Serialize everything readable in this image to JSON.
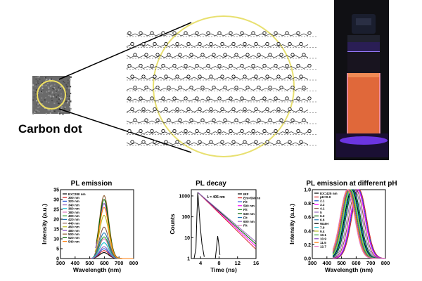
{
  "labels": {
    "carbon_dot": "Carbon dot",
    "panel1_title": "PL emission",
    "panel2_title": "PL decay",
    "panel3_title": "PL emission at different pH"
  },
  "colors": {
    "vial_glow": "#e0683a",
    "vial_background": "#101014",
    "uv_purple": "#7a3cff",
    "guide_circle": "#e8e070"
  },
  "chart_data": [
    {
      "type": "line",
      "title": "PL emission",
      "xlabel": "Wavelength (nm)",
      "ylabel": "Intensity (a.u.)",
      "xlim": [
        300,
        800
      ],
      "ylim": [
        0,
        35
      ],
      "xticks": [
        "300",
        "400",
        "500",
        "600",
        "700",
        "800"
      ],
      "yticks": [
        "0",
        "5",
        "10",
        "15",
        "20",
        "25",
        "30",
        "35"
      ],
      "legend": {
        "placement": "top-left"
      },
      "series": [
        {
          "name": "EX=280 nm",
          "color": "#000000",
          "peak_x": 598,
          "peak_y": 3
        },
        {
          "name": "300 nm",
          "color": "#d62728",
          "peak_x": 598,
          "peak_y": 4
        },
        {
          "name": "320 nm",
          "color": "#1f4fd6",
          "peak_x": 598,
          "peak_y": 5
        },
        {
          "name": "340 nm",
          "color": "#9467bd",
          "peak_x": 598,
          "peak_y": 6
        },
        {
          "name": "360 nm",
          "color": "#17becf",
          "peak_x": 598,
          "peak_y": 8
        },
        {
          "name": "380 nm",
          "color": "#e377c2",
          "peak_x": 598,
          "peak_y": 10
        },
        {
          "name": "400 nm",
          "color": "#2ca02c",
          "peak_x": 598,
          "peak_y": 11
        },
        {
          "name": "420 nm",
          "color": "#1f77b4",
          "peak_x": 598,
          "peak_y": 13
        },
        {
          "name": "440 nm",
          "color": "#8c564b",
          "peak_x": 598,
          "peak_y": 16
        },
        {
          "name": "460 nm",
          "color": "#bcbd22",
          "peak_x": 598,
          "peak_y": 22
        },
        {
          "name": "480 nm",
          "color": "#7f3fbf",
          "peak_x": 598,
          "peak_y": 28
        },
        {
          "name": "500 nm",
          "color": "#8b5a2b",
          "peak_x": 598,
          "peak_y": 32
        },
        {
          "name": "520 nm",
          "color": "#006400",
          "peak_x": 598,
          "peak_y": 30
        },
        {
          "name": "540 nm",
          "color": "#ff7f0e",
          "peak_x": 598,
          "peak_y": 26
        }
      ]
    },
    {
      "type": "line",
      "title": "PL decay",
      "xlabel": "Time (ns)",
      "ylabel": "Counts",
      "xlim": [
        2,
        16
      ],
      "ylim": [
        1,
        2000
      ],
      "yscale": "log",
      "xticks": [
        "4",
        "8",
        "12",
        "16"
      ],
      "yticks": [
        "1",
        "10",
        "100",
        "1000"
      ],
      "annotation": "λ = 405 nm",
      "legend": {
        "placement": "top-right"
      },
      "series": [
        {
          "name": "IRF",
          "color": "#000000"
        },
        {
          "name": "Em=560 nm",
          "color": "#d62728"
        },
        {
          "name": "Fit",
          "color": "#1f4fd6"
        },
        {
          "name": "590 nm",
          "color": "#ff00ff"
        },
        {
          "name": "Fit",
          "color": "#2ca02c"
        },
        {
          "name": "630 nm",
          "color": "#006400"
        },
        {
          "name": "Fit",
          "color": "#1f77b4"
        },
        {
          "name": "600 nm",
          "color": "#9467bd"
        },
        {
          "name": "Fit",
          "color": "#e377c2"
        }
      ]
    },
    {
      "type": "line",
      "title": "PL emission at different pH",
      "xlabel": "Wavelength (nm)",
      "ylabel": "Intensity (a.u.)",
      "xlim": [
        300,
        800
      ],
      "ylim": [
        0,
        1.0
      ],
      "xticks": [
        "300",
        "400",
        "500",
        "600",
        "700",
        "800"
      ],
      "yticks": [
        "0.0",
        "0.2",
        "0.4",
        "0.6",
        "0.8",
        "1.0"
      ],
      "legend": {
        "placement": "top-left"
      },
      "series": [
        {
          "name": "EX=425 nm",
          "color": "#000000",
          "peak_x": 560,
          "peak_y": 0.0
        },
        {
          "name": "pH=0.9",
          "color": "#d62728",
          "peak_x": 620,
          "peak_y": 1.0
        },
        {
          "name": "2.1",
          "color": "#1f4fd6",
          "peak_x": 615,
          "peak_y": 1.0
        },
        {
          "name": "3.2",
          "color": "#ff00ff",
          "peak_x": 610,
          "peak_y": 1.0
        },
        {
          "name": "4.1",
          "color": "#8c564b",
          "peak_x": 600,
          "peak_y": 1.0
        },
        {
          "name": "5",
          "color": "#9467bd",
          "peak_x": 590,
          "peak_y": 1.0
        },
        {
          "name": "6.2",
          "color": "#006400",
          "peak_x": 580,
          "peak_y": 1.0
        },
        {
          "name": "6.6",
          "color": "#1f77b4",
          "peak_x": 575,
          "peak_y": 1.0
        },
        {
          "name": "Water",
          "color": "#000000",
          "peak_x": 570,
          "peak_y": 1.0
        },
        {
          "name": "7.9",
          "color": "#17becf",
          "peak_x": 565,
          "peak_y": 1.0
        },
        {
          "name": "9.4",
          "color": "#bcbd22",
          "peak_x": 560,
          "peak_y": 1.0
        },
        {
          "name": "10.1",
          "color": "#2ca02c",
          "peak_x": 555,
          "peak_y": 1.0
        },
        {
          "name": "10.9",
          "color": "#7f3fbf",
          "peak_x": 550,
          "peak_y": 1.0
        },
        {
          "name": "11.5",
          "color": "#ff7f0e",
          "peak_x": 545,
          "peak_y": 1.0
        },
        {
          "name": "12.7",
          "color": "#e377c2",
          "peak_x": 540,
          "peak_y": 1.0
        }
      ]
    }
  ]
}
